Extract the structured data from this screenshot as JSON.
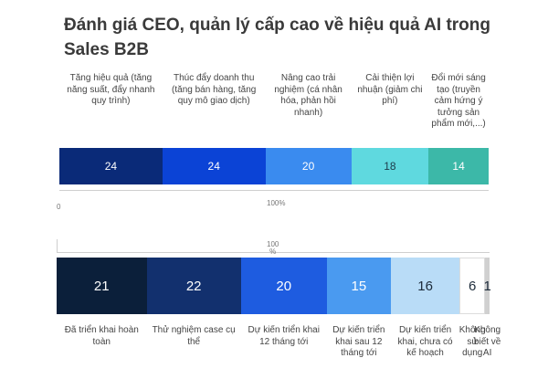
{
  "title": "Đánh giá CEO, quản lý cấp cao về hiệu quả AI trong Sales B2B",
  "chart_data": [
    {
      "type": "bar",
      "orientation": "horizontal-stacked",
      "total_label": "100%",
      "zero_label": "0",
      "categories": [
        "Tăng hiệu quả (tăng năng suất, đẩy nhanh quy trình)",
        "Thúc đẩy doanh thu (tăng bán hàng, tăng quy mô giao dịch)",
        "Nâng cao trải nghiệm (cá nhân hóa, phản hồi nhanh)",
        "Cải thiện lợi nhuận (giảm chi phí)",
        "Đổi mới sáng tạo (truyền cảm hứng ý tưởng sản phẩm mới,...)"
      ],
      "values": [
        24,
        24,
        20,
        18,
        14
      ],
      "colors": [
        "#0a2a78",
        "#0b43d6",
        "#3a8bef",
        "#5fd9df",
        "#3cb8a8"
      ],
      "text_colors": [
        "#ffffff",
        "#ffffff",
        "#ffffff",
        "#1d3b4a",
        "#ffffff"
      ]
    },
    {
      "type": "bar",
      "orientation": "horizontal-stacked",
      "total_label": "100\n%",
      "categories": [
        "Đã triển khai hoàn toàn",
        "Thử nghiệm case cụ thể",
        "Dự kiến triển khai 12 tháng tới",
        "Dự kiến triển khai sau 12 tháng tới",
        "Dự kiến triển khai, chưa có kế hoạch",
        "Không sử dụng",
        "Không biết về AI"
      ],
      "values": [
        21,
        22,
        20,
        15,
        16,
        6,
        1
      ],
      "colors": [
        "#0b1f3a",
        "#12306e",
        "#1e5ce0",
        "#4a9af0",
        "#b9dcf7",
        "#ffffff",
        "#d0d0d0"
      ],
      "text_colors": [
        "#ffffff",
        "#ffffff",
        "#ffffff",
        "#ffffff",
        "#1d2b3a",
        "#1d2b3a",
        "#1d2b3a"
      ]
    }
  ]
}
